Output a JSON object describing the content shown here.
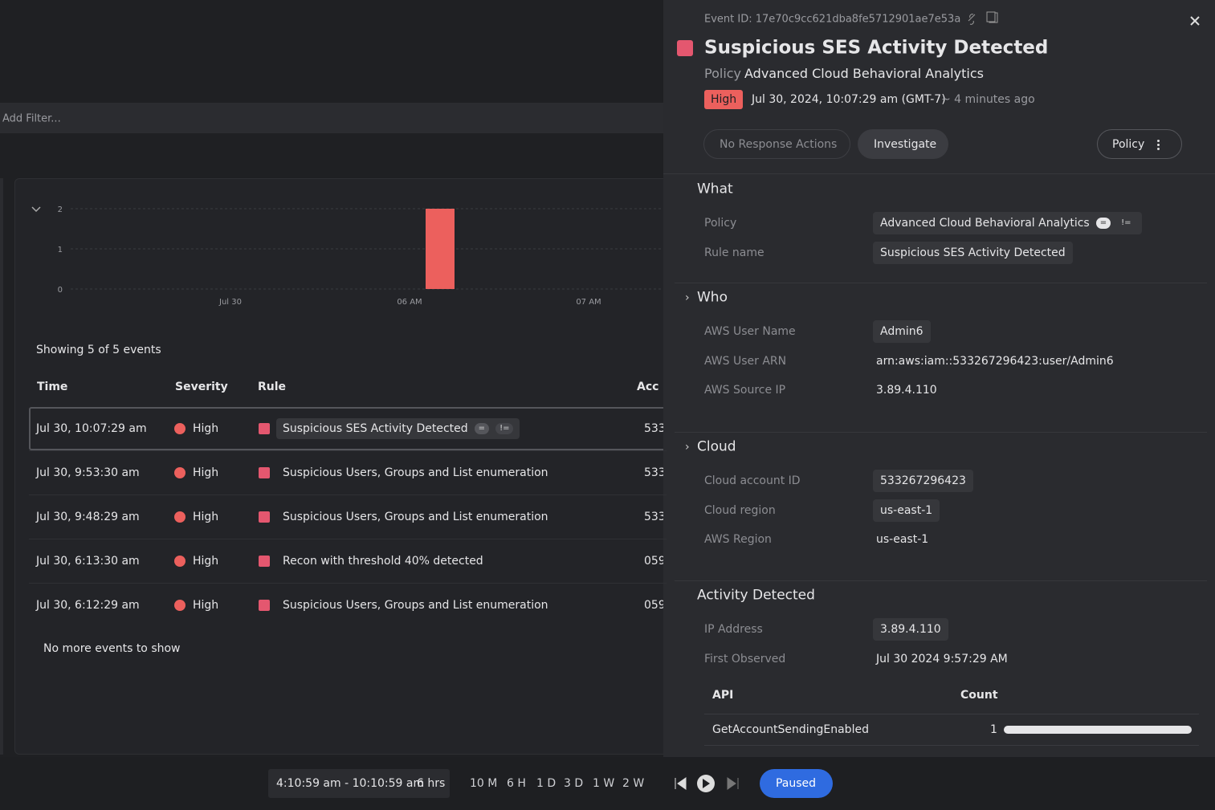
{
  "filter": {
    "placeholder": "Add Filter..."
  },
  "histogram": {
    "ylim": [
      0,
      2
    ],
    "yticks": [
      0,
      1,
      2
    ],
    "xlabels": [
      "Jul 30",
      "06 AM",
      "07 AM"
    ],
    "values": [
      2
    ],
    "color": "#ec605d"
  },
  "events": {
    "summary": "Showing 5 of 5 events",
    "columns": [
      "Time",
      "Severity",
      "Rule",
      "Acc"
    ],
    "filter_ops": [
      "=",
      "!="
    ],
    "rows": [
      {
        "time": "Jul 30, 10:07:29 am",
        "severity": "High",
        "rule": "Suspicious SES Activity Detected",
        "account": "533"
      },
      {
        "time": "Jul 30, 9:53:30 am",
        "severity": "High",
        "rule": "Suspicious Users, Groups and List enumeration",
        "account": "533"
      },
      {
        "time": "Jul 30, 9:48:29 am",
        "severity": "High",
        "rule": "Suspicious Users, Groups and List enumeration",
        "account": "533"
      },
      {
        "time": "Jul 30, 6:13:30 am",
        "severity": "High",
        "rule": "Recon with threshold 40% detected",
        "account": "059"
      },
      {
        "time": "Jul 30, 6:12:29 am",
        "severity": "High",
        "rule": "Suspicious Users, Groups and List enumeration",
        "account": "059"
      }
    ],
    "footer": "No more events to show"
  },
  "timebar": {
    "range": "4:10:59 am - 10:10:59 am",
    "duration": "6 hrs",
    "presets": [
      "10 M",
      "6 H",
      "1 D",
      "3 D",
      "1 W",
      "2 W"
    ],
    "status": "Paused"
  },
  "detail": {
    "event_id": "Event ID: 17e70c9cc621dba8fe5712901ae7e53a",
    "title": "Suspicious SES Activity Detected",
    "policy_label": "Policy",
    "policy_value": "Advanced Cloud Behavioral Analytics",
    "severity": "High",
    "timestamp": "Jul 30, 2024, 10:07:29 am (GMT-7)",
    "ago": "~ 4 minutes ago",
    "actions": [
      "No Response Actions",
      "Investigate"
    ],
    "policy_button": "Policy",
    "sections": [
      {
        "title": "What",
        "fields": [
          {
            "label": "Policy",
            "value": "Advanced Cloud Behavioral Analytics",
            "chip": true,
            "ops": [
              "=",
              "!="
            ]
          },
          {
            "label": "Rule name",
            "value": "Suspicious SES Activity Detected",
            "chip": true
          }
        ]
      },
      {
        "title": "Who",
        "fields": [
          {
            "label": "AWS User Name",
            "value": "Admin6",
            "chip": true
          },
          {
            "label": "AWS User ARN",
            "value": "arn:aws:iam::533267296423:user/Admin6",
            "chip": false
          },
          {
            "label": "AWS Source IP",
            "value": "3.89.4.110",
            "chip": false
          }
        ]
      },
      {
        "title": "Cloud",
        "fields": [
          {
            "label": "Cloud account ID",
            "value": "533267296423",
            "chip": true
          },
          {
            "label": "Cloud region",
            "value": "us-east-1",
            "chip": true
          },
          {
            "label": "AWS Region",
            "value": "us-east-1",
            "chip": false
          }
        ]
      },
      {
        "title": "Activity Detected",
        "fields": [
          {
            "label": "IP Address",
            "value": "3.89.4.110",
            "chip": true
          },
          {
            "label": "First Observed",
            "value": "Jul 30 2024 9:57:29 AM",
            "chip": false
          }
        ]
      }
    ],
    "api_table": {
      "columns": [
        "API",
        "Count"
      ],
      "rows": [
        {
          "api": "GetAccountSendingEnabled",
          "count": 1
        }
      ]
    }
  }
}
